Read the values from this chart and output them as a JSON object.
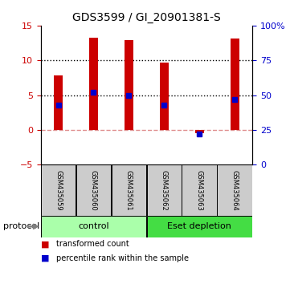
{
  "title": "GDS3599 / GI_20901381-S",
  "samples": [
    "GSM435059",
    "GSM435060",
    "GSM435061",
    "GSM435062",
    "GSM435063",
    "GSM435064"
  ],
  "red_values": [
    7.8,
    13.3,
    12.9,
    9.7,
    -0.5,
    13.1
  ],
  "blue_values_pct": [
    43,
    52,
    50,
    43,
    22,
    47
  ],
  "ylim_left": [
    -5,
    15
  ],
  "ylim_right": [
    0,
    100
  ],
  "yticks_left": [
    -5,
    0,
    5,
    10,
    15
  ],
  "yticks_right": [
    0,
    25,
    50,
    75,
    100
  ],
  "dotted_lines": [
    5,
    10
  ],
  "zero_line": 0,
  "bar_color": "#cc0000",
  "blue_color": "#0000cc",
  "groups": [
    {
      "label": "control",
      "samples": [
        0,
        1,
        2
      ],
      "color": "#aaffaa"
    },
    {
      "label": "Eset depletion",
      "samples": [
        3,
        4,
        5
      ],
      "color": "#44dd44"
    }
  ],
  "protocol_label": "protocol",
  "legend_red": "transformed count",
  "legend_blue": "percentile rank within the sample",
  "bg_color": "#ffffff",
  "sample_bg": "#cccccc",
  "title_fontsize": 10,
  "tick_fontsize": 8,
  "bar_width": 0.25
}
